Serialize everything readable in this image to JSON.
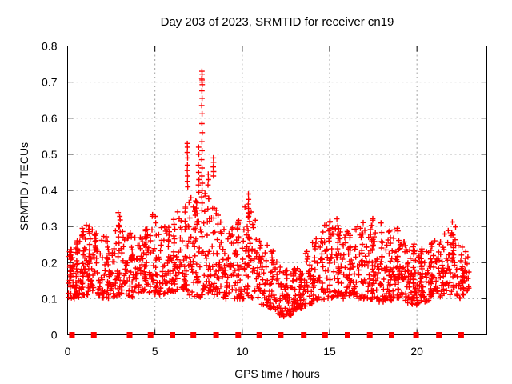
{
  "chart_data": {
    "type": "scatter",
    "title": "Day 203 of 2023, SRMTID for receiver cn19",
    "xlabel": "GPS time / hours",
    "ylabel": "SRMTID / TECUs",
    "xlim": [
      0,
      24
    ],
    "ylim": [
      0,
      0.8
    ],
    "xticks": [
      0,
      5,
      10,
      15,
      20
    ],
    "yticks": [
      0,
      0.1,
      0.2,
      0.3,
      0.4,
      0.5,
      0.6,
      0.7,
      0.8
    ],
    "grid": true,
    "legend": "none",
    "marker": "plus",
    "colors": {
      "points": "#ff0000",
      "grid": "#a0a0a0",
      "axis": "#000000",
      "text": "#000000",
      "background": "#ffffff"
    },
    "series_name": "SRMTID",
    "envelope_note": "dense scatter band vs GPS hour: [t, low, high] read from plot",
    "envelope": [
      [
        0.0,
        0.1,
        0.24
      ],
      [
        0.5,
        0.1,
        0.26
      ],
      [
        1.0,
        0.11,
        0.31
      ],
      [
        1.5,
        0.11,
        0.3
      ],
      [
        2.0,
        0.1,
        0.28
      ],
      [
        2.5,
        0.1,
        0.26
      ],
      [
        2.9,
        0.11,
        0.34
      ],
      [
        3.3,
        0.1,
        0.3
      ],
      [
        3.8,
        0.1,
        0.27
      ],
      [
        4.3,
        0.11,
        0.28
      ],
      [
        4.9,
        0.11,
        0.34
      ],
      [
        5.4,
        0.11,
        0.3
      ],
      [
        5.9,
        0.12,
        0.33
      ],
      [
        6.5,
        0.12,
        0.35
      ],
      [
        7.0,
        0.11,
        0.38
      ],
      [
        7.6,
        0.1,
        0.4
      ],
      [
        8.0,
        0.11,
        0.4
      ],
      [
        8.4,
        0.11,
        0.36
      ],
      [
        9.0,
        0.1,
        0.31
      ],
      [
        9.6,
        0.1,
        0.3
      ],
      [
        10.2,
        0.1,
        0.36
      ],
      [
        10.7,
        0.1,
        0.33
      ],
      [
        11.2,
        0.08,
        0.27
      ],
      [
        11.7,
        0.07,
        0.24
      ],
      [
        12.2,
        0.05,
        0.2
      ],
      [
        12.7,
        0.05,
        0.18
      ],
      [
        13.2,
        0.07,
        0.19
      ],
      [
        13.7,
        0.08,
        0.24
      ],
      [
        14.2,
        0.09,
        0.27
      ],
      [
        14.8,
        0.1,
        0.33
      ],
      [
        15.2,
        0.1,
        0.34
      ],
      [
        15.7,
        0.1,
        0.3
      ],
      [
        16.2,
        0.1,
        0.29
      ],
      [
        16.7,
        0.1,
        0.31
      ],
      [
        17.2,
        0.1,
        0.33
      ],
      [
        17.8,
        0.09,
        0.32
      ],
      [
        18.3,
        0.09,
        0.29
      ],
      [
        18.9,
        0.1,
        0.3
      ],
      [
        19.4,
        0.09,
        0.27
      ],
      [
        19.9,
        0.08,
        0.25
      ],
      [
        20.4,
        0.09,
        0.24
      ],
      [
        21.0,
        0.1,
        0.26
      ],
      [
        21.6,
        0.11,
        0.28
      ],
      [
        22.1,
        0.11,
        0.32
      ],
      [
        22.5,
        0.1,
        0.26
      ],
      [
        23.0,
        0.13,
        0.22
      ]
    ],
    "peak_points": [
      [
        6.85,
        0.53
      ],
      [
        6.86,
        0.52
      ],
      [
        6.85,
        0.505
      ],
      [
        6.87,
        0.49
      ],
      [
        6.86,
        0.47
      ],
      [
        6.85,
        0.455
      ],
      [
        6.87,
        0.44
      ],
      [
        6.86,
        0.425
      ],
      [
        6.88,
        0.41
      ],
      [
        7.5,
        0.52
      ],
      [
        7.51,
        0.5
      ],
      [
        7.49,
        0.47
      ],
      [
        7.5,
        0.45
      ],
      [
        7.52,
        0.43
      ],
      [
        7.49,
        0.415
      ],
      [
        7.51,
        0.395
      ],
      [
        7.69,
        0.73
      ],
      [
        7.7,
        0.722
      ],
      [
        7.68,
        0.71
      ],
      [
        7.7,
        0.706
      ],
      [
        7.69,
        0.7
      ],
      [
        7.71,
        0.693
      ],
      [
        7.69,
        0.676
      ],
      [
        7.7,
        0.655
      ],
      [
        7.68,
        0.635
      ],
      [
        7.7,
        0.612
      ],
      [
        7.69,
        0.585
      ],
      [
        7.71,
        0.56
      ],
      [
        7.69,
        0.535
      ],
      [
        7.7,
        0.51
      ],
      [
        7.68,
        0.485
      ],
      [
        7.7,
        0.462
      ],
      [
        7.69,
        0.44
      ],
      [
        7.71,
        0.42
      ],
      [
        7.7,
        0.4
      ],
      [
        7.68,
        0.382
      ],
      [
        7.7,
        0.365
      ],
      [
        7.69,
        0.345
      ],
      [
        8.05,
        0.445
      ],
      [
        8.06,
        0.43
      ],
      [
        8.04,
        0.415
      ],
      [
        8.35,
        0.49
      ],
      [
        8.36,
        0.478
      ],
      [
        8.34,
        0.465
      ],
      [
        8.36,
        0.452
      ],
      [
        8.35,
        0.44
      ],
      [
        10.35,
        0.39
      ],
      [
        10.36,
        0.375
      ],
      [
        10.34,
        0.362
      ],
      [
        10.36,
        0.35
      ],
      [
        10.35,
        0.338
      ]
    ],
    "baseline_markers": {
      "marker": "filled-square",
      "color": "#ff0000",
      "y": 0,
      "times": [
        0.25,
        1.5,
        3.55,
        4.75,
        6.0,
        7.2,
        8.5,
        9.77,
        10.98,
        12.2,
        13.52,
        14.74,
        16.03,
        17.3,
        18.55,
        19.95,
        21.26,
        22.53
      ]
    },
    "data_time_range": [
      0.05,
      23.0
    ]
  }
}
